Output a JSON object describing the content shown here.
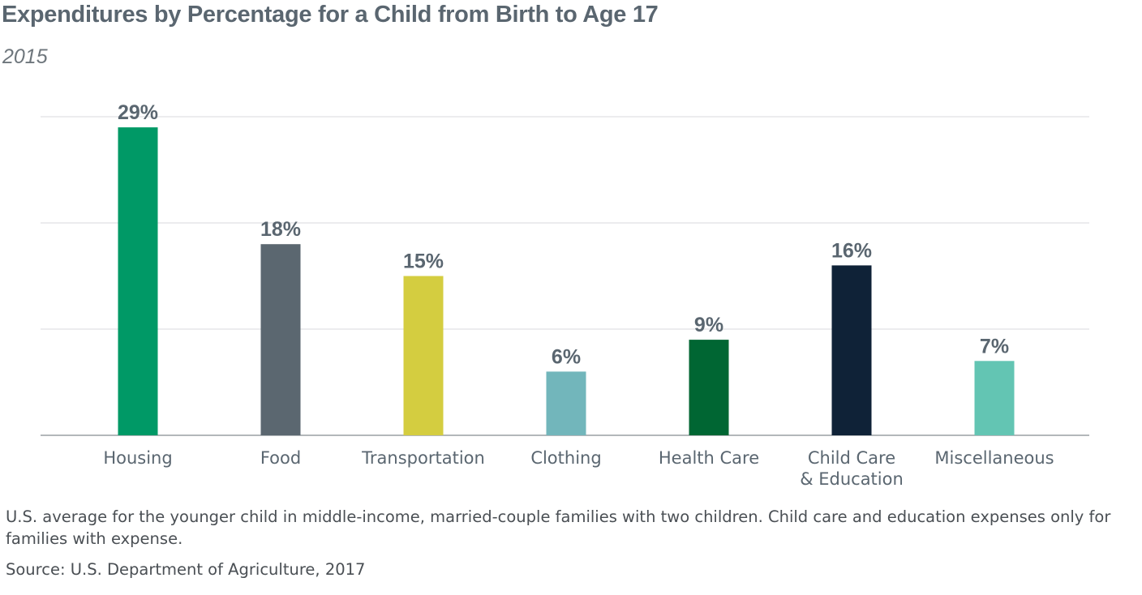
{
  "title": "Expenditures by Percentage for a Child from Birth to Age 17",
  "subtitle": "2015",
  "note": "U.S. average for the younger child in middle-income, married-couple families with two children. Child care and education expenses only for families with expense.",
  "source": "Source: U.S. Department of Agriculture, 2017",
  "chart_data": {
    "type": "bar",
    "title": "Expenditures by Percentage for a Child from Birth to Age 17",
    "subtitle": "2015",
    "xlabel": "",
    "ylabel": "",
    "ylim": [
      0,
      30
    ],
    "grid": true,
    "categories": [
      [
        "Housing"
      ],
      [
        "Food"
      ],
      [
        "Transportation"
      ],
      [
        "Clothing"
      ],
      [
        "Health Care"
      ],
      [
        "Child Care",
        "& Education"
      ],
      [
        "Miscellaneous"
      ]
    ],
    "values": [
      29,
      18,
      15,
      6,
      9,
      16,
      7
    ],
    "value_labels": [
      "29%",
      "18%",
      "15%",
      "6%",
      "9%",
      "16%",
      "7%"
    ],
    "colors": [
      "#009966",
      "#5b6770",
      "#d4cd40",
      "#72b6bb",
      "#006633",
      "#0f2237",
      "#63c5b3"
    ]
  }
}
